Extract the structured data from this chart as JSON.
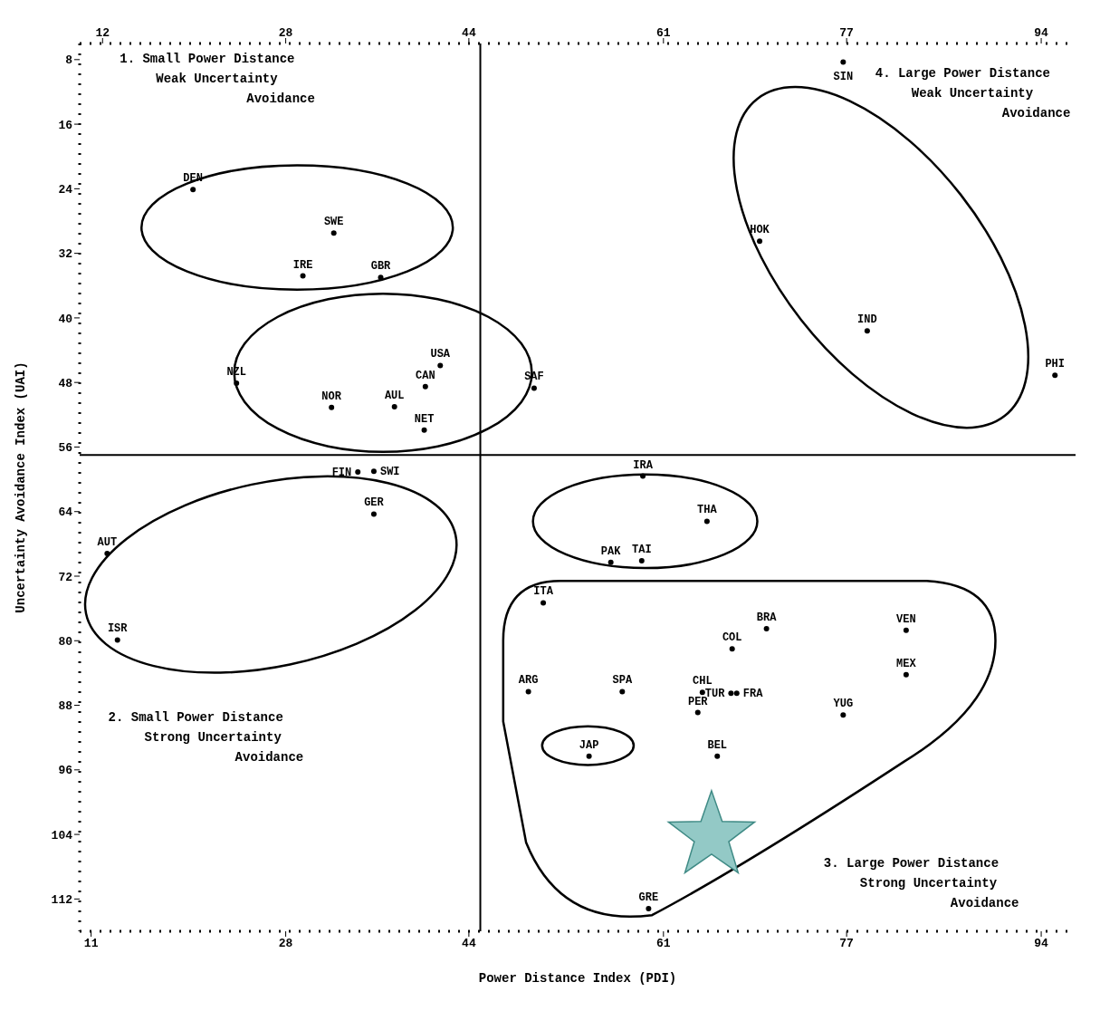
{
  "chart_data": {
    "type": "scatter",
    "xlabel": "Power Distance Index (PDI)",
    "ylabel": "Uncertainty Avoidance Index (UAI)",
    "x": [
      19.9,
      32.2,
      29.5,
      36.3,
      23.7,
      32,
      41.5,
      40.2,
      37.5,
      40.1,
      49.7,
      34.3,
      35.7,
      35.7,
      12.4,
      13.3,
      76.7,
      69.4,
      78.8,
      95.2,
      59.2,
      64.8,
      56.4,
      59.1,
      50.5,
      70,
      67,
      82.2,
      82.2,
      49.2,
      57.4,
      64.4,
      66.9,
      67.4,
      76.7,
      64,
      54.5,
      65.7,
      59.7
    ],
    "values": [
      24.1,
      29.5,
      34.8,
      35,
      48.1,
      51.1,
      45.9,
      48.5,
      51,
      53.9,
      48.7,
      59.1,
      59,
      64.3,
      69.2,
      79.9,
      8.3,
      30.5,
      41.6,
      47.1,
      59.6,
      65.2,
      70.3,
      70.1,
      75.3,
      78.5,
      81,
      78.7,
      84.2,
      86.3,
      86.3,
      86.4,
      86.5,
      86.5,
      89.2,
      88.9,
      94.3,
      94.3,
      113.2
    ],
    "value_labels": [
      "DEN",
      "SWE",
      "IRE",
      "GBR",
      "NZL",
      "NOR",
      "USA",
      "CAN",
      "AUL",
      "NET",
      "SAF",
      "FIN",
      "SWI",
      "GER",
      "AUT",
      "ISR",
      "SIN",
      "HOK",
      "IND",
      "PHI",
      "IRA",
      "THA",
      "PAK",
      "TAI",
      "ITA",
      "BRA",
      "COL",
      "VEN",
      "MEX",
      "ARG",
      "SPA",
      "CHL",
      "TUR",
      "FRA",
      "YUG",
      "PER",
      "JAP",
      "BEL",
      "GRE"
    ],
    "color": "#000000",
    "marker": "circle",
    "xlim": [
      10,
      97
    ],
    "xticks": [
      11,
      28,
      44,
      61,
      77,
      94
    ],
    "x2lim": [
      10,
      97
    ],
    "x2ticks": [
      12,
      28,
      44,
      61,
      77,
      94
    ],
    "ylim": [
      116,
      6
    ],
    "yticks": [
      8,
      16,
      24,
      32,
      40,
      48,
      56,
      64,
      72,
      80,
      88,
      96,
      104,
      112
    ],
    "ref_lines": [
      {
        "axis": "x",
        "value": 45,
        "color": "#000000"
      },
      {
        "axis": "y",
        "value": 57,
        "color": "#000000"
      }
    ],
    "annotations": [
      "1. Small Power Distance\nWeak Uncertainty\nAvoidance",
      "4. Large Power Distance\nWeak Uncertainty\nAvoidance",
      "2. Small Power Distance\nStrong Uncertainty\nAvoidance",
      "3. Large Power Distance\nStrong Uncertainty\nAvoidance"
    ]
  }
}
